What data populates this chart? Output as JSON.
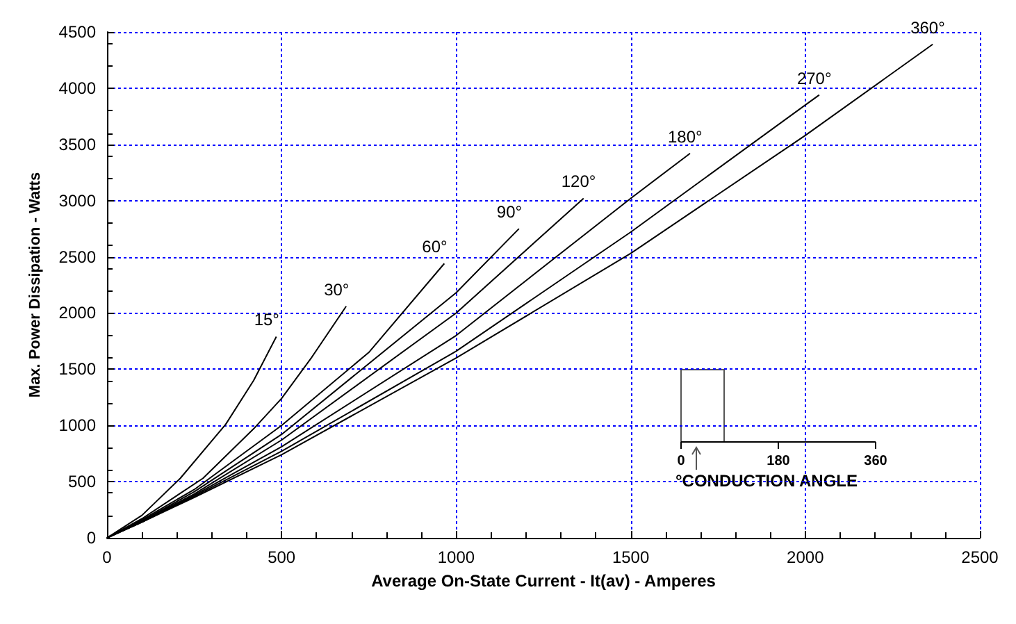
{
  "chart_data": {
    "type": "line",
    "xlabel": "Average On-State Current - It(av) - Amperes",
    "ylabel": "Max. Power Dissipation - Watts",
    "xlim": [
      0,
      2500
    ],
    "xticks": [
      0,
      500,
      1000,
      1500,
      2000,
      2500
    ],
    "ylim": [
      0,
      4500
    ],
    "yticks": [
      0,
      500,
      1000,
      1500,
      2000,
      2500,
      3000,
      3500,
      4000,
      4500
    ],
    "grid": true,
    "legend": false,
    "marker": "none",
    "line_style": "solid",
    "series": [
      {
        "name": "15°",
        "color": "#000000",
        "x": [
          0,
          100,
          210,
          340,
          420,
          485
        ],
        "values": [
          0,
          200,
          530,
          1010,
          1400,
          1790
        ]
      },
      {
        "name": "30°",
        "color": "#000000",
        "x": [
          0,
          100,
          275,
          420,
          500,
          585,
          685
        ],
        "values": [
          0,
          170,
          530,
          970,
          1240,
          1600,
          2060
        ]
      },
      {
        "name": "60°",
        "color": "#000000",
        "x": [
          0,
          100,
          250,
          500,
          750,
          966
        ],
        "values": [
          0,
          160,
          430,
          1000,
          1650,
          2440
        ]
      },
      {
        "name": "90°",
        "color": "#000000",
        "x": [
          0,
          100,
          250,
          500,
          1000,
          1180
        ],
        "values": [
          0,
          150,
          410,
          920,
          2180,
          2750
        ]
      },
      {
        "name": "120°",
        "color": "#000000",
        "x": [
          0,
          100,
          250,
          500,
          1000,
          1365
        ],
        "values": [
          0,
          150,
          390,
          870,
          2000,
          3020
        ]
      },
      {
        "name": "180°",
        "color": "#000000",
        "x": [
          0,
          100,
          250,
          500,
          1000,
          1500,
          1670
        ],
        "values": [
          0,
          140,
          380,
          810,
          1800,
          3020,
          3420
        ]
      },
      {
        "name": "270°",
        "color": "#000000",
        "x": [
          0,
          100,
          250,
          500,
          1000,
          1500,
          2000,
          2040
        ],
        "values": [
          0,
          140,
          370,
          770,
          1660,
          2720,
          3850,
          3940
        ]
      },
      {
        "name": "360°",
        "color": "#000000",
        "x": [
          0,
          100,
          250,
          500,
          1000,
          1500,
          2000,
          2365
        ],
        "values": [
          0,
          140,
          360,
          740,
          1600,
          2530,
          3580,
          4390
        ]
      }
    ],
    "annotations": [
      "0",
      "180",
      "360",
      "°CONDUCTION ANGLE"
    ]
  }
}
